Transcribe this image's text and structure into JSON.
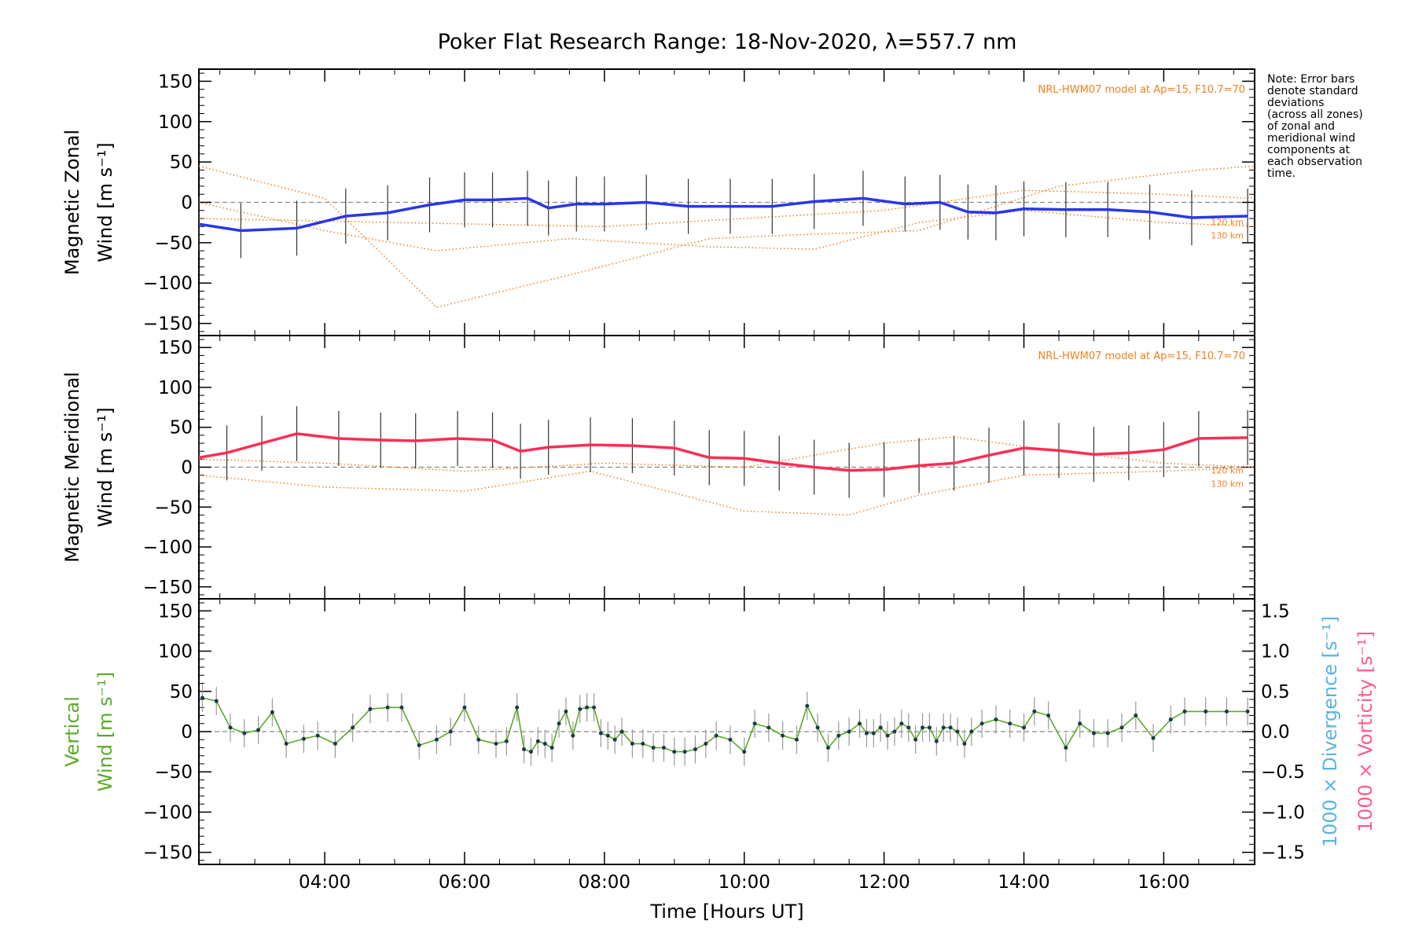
{
  "chart_data": {
    "type": "line",
    "title": "Poker Flat Research Range: 18-Nov-2020, λ=557.7 nm",
    "xlabel": "Time [Hours UT]",
    "xlim": [
      2.2,
      17.3
    ],
    "x_ticks": [
      {
        "value": 4,
        "label": "04:00"
      },
      {
        "value": 6,
        "label": "06:00"
      },
      {
        "value": 8,
        "label": "08:00"
      },
      {
        "value": 10,
        "label": "10:00"
      },
      {
        "value": 12,
        "label": "12:00"
      },
      {
        "value": 14,
        "label": "14:00"
      },
      {
        "value": 16,
        "label": "16:00"
      }
    ],
    "y_ticks": [
      150,
      100,
      50,
      0,
      -50,
      -100,
      -150
    ],
    "note_lines": [
      "Note: Error bars",
      "denote standard",
      "deviations",
      "(across all zones)",
      "of zonal and",
      "meridional wind",
      "components at",
      "each observation",
      "time."
    ],
    "panels": [
      {
        "id": "zonal",
        "ylabel_line1": "Magnetic Zonal",
        "ylabel_line2": "Wind [m s⁻¹]",
        "ylim": [
          -165,
          165
        ],
        "model_label": "NRL-HWM07 model at Ap=15, F10.7=70",
        "model_km_labels": [
          "120 km",
          "130 km"
        ],
        "series": [
          {
            "color": "#2a36e8",
            "x": [
              2.2,
              2.8,
              3.6,
              4.3,
              4.9,
              5.5,
              6.0,
              6.4,
              6.9,
              7.2,
              7.6,
              8.0,
              8.6,
              9.2,
              9.8,
              10.4,
              11.0,
              11.7,
              12.3,
              12.8,
              13.2,
              13.6,
              14.0,
              14.6,
              15.2,
              15.8,
              16.4,
              17.2
            ],
            "y": [
              -27,
              -35,
              -32,
              -17,
              -13,
              -3,
              3,
              3,
              5,
              -7,
              -2,
              -2,
              0,
              -5,
              -5,
              -5,
              1,
              5,
              -2,
              0,
              -12,
              -13,
              -8,
              -9,
              -9,
              -12,
              -19,
              -17
            ]
          }
        ],
        "model_lines": [
          {
            "x": [
              2.2,
              4.0,
              5.6,
              7.5,
              9.5,
              10.8,
              12.5,
              14.5,
              16.5,
              17.3
            ],
            "y": [
              45,
              5,
              -130,
              -90,
              -45,
              -40,
              -35,
              20,
              40,
              45
            ]
          },
          {
            "x": [
              2.2,
              4.0,
              5.6,
              7.5,
              9.5,
              11.0,
              12.5,
              14.0,
              16.0,
              17.3
            ],
            "y": [
              0,
              -35,
              -60,
              -45,
              -55,
              -58,
              -25,
              -10,
              -25,
              -30
            ]
          },
          {
            "x": [
              2.2,
              5.0,
              8.0,
              10.0,
              12.0,
              14.0,
              16.0,
              17.3
            ],
            "y": [
              -20,
              -25,
              -30,
              -20,
              -10,
              15,
              10,
              5
            ]
          }
        ]
      },
      {
        "id": "meridional",
        "ylabel_line1": "Magnetic Meridional",
        "ylabel_line2": "Wind [m s⁻¹]",
        "ylim": [
          -165,
          165
        ],
        "model_label": "NRL-HWM07 model at Ap=15, F10.7=70",
        "model_km_labels": [
          "120 km",
          "130 km"
        ],
        "series": [
          {
            "color": "#ff2d55",
            "x": [
              2.2,
              2.6,
              3.1,
              3.6,
              4.2,
              4.8,
              5.3,
              5.9,
              6.4,
              6.8,
              7.2,
              7.8,
              8.4,
              9.0,
              9.5,
              10.0,
              10.5,
              11.0,
              11.5,
              12.0,
              12.5,
              13.0,
              13.5,
              14.0,
              14.5,
              15.0,
              15.5,
              16.0,
              16.5,
              17.2
            ],
            "y": [
              12,
              18,
              30,
              42,
              36,
              34,
              33,
              36,
              34,
              20,
              25,
              28,
              27,
              24,
              12,
              11,
              5,
              0,
              -4,
              -3,
              2,
              5,
              15,
              24,
              21,
              16,
              18,
              22,
              36,
              37
            ]
          }
        ],
        "model_lines": [
          {
            "x": [
              2.2,
              4.0,
              6.0,
              7.8,
              10.0,
              11.5,
              12.5,
              14.0,
              16.0,
              17.3
            ],
            "y": [
              -10,
              -25,
              -30,
              -5,
              -55,
              -60,
              -35,
              -10,
              -5,
              0
            ]
          },
          {
            "x": [
              2.2,
              4.0,
              6.0,
              8.0,
              10.0,
              12.0,
              13.0,
              14.5,
              16.0,
              17.3
            ],
            "y": [
              10,
              5,
              -5,
              5,
              0,
              30,
              38,
              20,
              5,
              0
            ]
          }
        ]
      },
      {
        "id": "vertical",
        "ylabel_line1": "Vertical",
        "ylabel_line2": "Wind [m s⁻¹]",
        "ylabel_color": "#5aaa28",
        "ylim": [
          -165,
          165
        ],
        "right_ylim": [
          -1.65,
          1.65
        ],
        "right_ticks": [
          1.5,
          1.0,
          0.5,
          0.0,
          -0.5,
          -1.0,
          -1.5
        ],
        "right_ylabel_divergence": "1000 × Divergence [s⁻¹]",
        "right_ylabel_vorticity": "1000 × Vorticity [s⁻¹]",
        "divergence_color": "#5ab4e0",
        "vorticity_color": "#ff5a8a",
        "series": [
          {
            "color": "#5aaa28",
            "x": [
              2.25,
              2.45,
              2.65,
              2.85,
              3.05,
              3.25,
              3.45,
              3.7,
              3.9,
              4.15,
              4.4,
              4.65,
              4.9,
              5.1,
              5.35,
              5.6,
              5.8,
              6.0,
              6.2,
              6.45,
              6.6,
              6.75,
              6.85,
              6.95,
              7.05,
              7.15,
              7.25,
              7.35,
              7.45,
              7.55,
              7.65,
              7.75,
              7.85,
              7.95,
              8.05,
              8.15,
              8.25,
              8.4,
              8.55,
              8.7,
              8.85,
              9.0,
              9.15,
              9.3,
              9.45,
              9.6,
              9.8,
              10.0,
              10.15,
              10.35,
              10.55,
              10.75,
              10.9,
              11.05,
              11.2,
              11.35,
              11.5,
              11.65,
              11.75,
              11.85,
              11.95,
              12.05,
              12.15,
              12.25,
              12.35,
              12.45,
              12.55,
              12.65,
              12.75,
              12.85,
              12.95,
              13.05,
              13.15,
              13.25,
              13.4,
              13.6,
              13.8,
              14.0,
              14.15,
              14.35,
              14.6,
              14.8,
              15.0,
              15.2,
              15.4,
              15.6,
              15.85,
              16.1,
              16.3,
              16.6,
              16.9,
              17.2
            ],
            "y": [
              42,
              38,
              5,
              -2,
              2,
              24,
              -15,
              -9,
              -5,
              -15,
              5,
              28,
              30,
              30,
              -17,
              -10,
              0,
              30,
              -10,
              -15,
              -12,
              30,
              -22,
              -25,
              -12,
              -15,
              -20,
              10,
              25,
              -5,
              28,
              30,
              30,
              -2,
              -5,
              -10,
              0,
              -15,
              -15,
              -20,
              -20,
              -25,
              -25,
              -22,
              -15,
              -5,
              -10,
              -25,
              10,
              5,
              -5,
              -10,
              32,
              5,
              -20,
              -5,
              0,
              10,
              -2,
              -2,
              5,
              -5,
              0,
              10,
              5,
              -10,
              5,
              5,
              -12,
              5,
              5,
              0,
              -15,
              0,
              10,
              15,
              10,
              5,
              25,
              20,
              -20,
              10,
              -2,
              -2,
              5,
              20,
              -8,
              15,
              25,
              25,
              25,
              25
            ]
          }
        ]
      }
    ]
  }
}
